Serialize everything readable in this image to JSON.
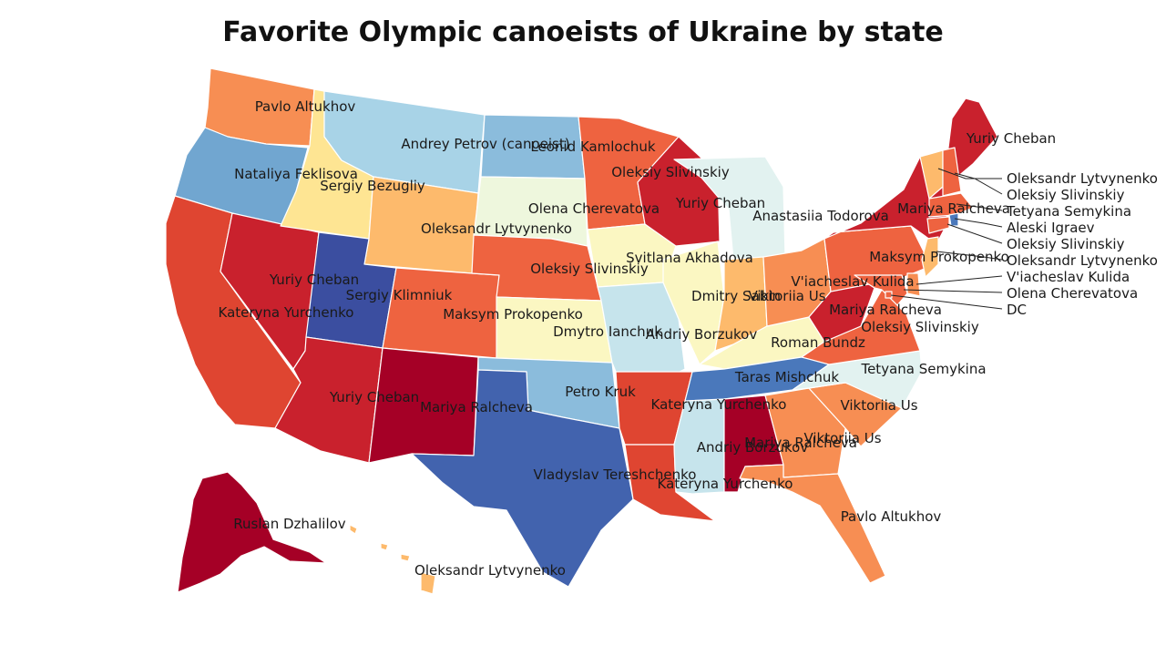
{
  "title": "Favorite Olympic canoeists of Ukraine by state",
  "colors": {
    "c1": "#a50026",
    "c2": "#c9212d",
    "c3": "#df4531",
    "c4": "#ee6340",
    "c5": "#f78e53",
    "c6": "#fdba6c",
    "c7": "#fee593",
    "c8": "#fbf7c2",
    "c9": "#eef7dd",
    "c10": "#e2f2f0",
    "c11": "#c6e4ec",
    "c12": "#a8d3e7",
    "c13": "#8bbcdc",
    "c14": "#71a6d0",
    "c15": "#4a78bb",
    "c16": "#4263ae",
    "c17": "#3b4ea0"
  },
  "states": {
    "WA": {
      "name": "Pavlo Altukhov",
      "fill": "c5"
    },
    "OR": {
      "name": "Nataliya Feklisova",
      "fill": "c14"
    },
    "CA": {
      "name": "Kateryna Yurchenko",
      "fill": "c3"
    },
    "NV": {
      "name": "Yuriy Cheban",
      "fill": "c2"
    },
    "ID": {
      "name": "Sergiy Bezugliy",
      "fill": "c7"
    },
    "MT": {
      "name": "Andrey Petrov (canoeist)",
      "fill": "c12"
    },
    "WY": {
      "name": "Oleksandr Lytvynenko",
      "fill": "c6"
    },
    "UT": {
      "name": "Sergiy Klimniuk",
      "fill": "c17"
    },
    "AZ": {
      "name": "Yuriy Cheban",
      "fill": "c2"
    },
    "CO": {
      "name": "Maksym Prokopenko",
      "fill": "c4"
    },
    "NM": {
      "name": "Mariya Ralcheva",
      "fill": "c1"
    },
    "ND": {
      "name": "Leonid Kamlochuk",
      "fill": "c13"
    },
    "SD": {
      "name": "Olena Cherevatova",
      "fill": "c9"
    },
    "NE": {
      "name": "Oleksiy Slivinskiy",
      "fill": "c4"
    },
    "KS": {
      "name": "Dmytro Ianchuk",
      "fill": "c8"
    },
    "OK": {
      "name": "Petro Kruk",
      "fill": "c13"
    },
    "TX": {
      "name": "Vladyslav Tereshchenko",
      "fill": "c16"
    },
    "MN": {
      "name": "Oleksiy Slivinskiy",
      "fill": "c4"
    },
    "IA": {
      "name": "Svitlana Akhadova",
      "fill": "c8"
    },
    "MO": {
      "name": "Andriy Borzukov",
      "fill": "c11"
    },
    "AR": {
      "name": "Kateryna Yurchenko",
      "fill": "c3"
    },
    "LA": {
      "name": "Kateryna Yurchenko",
      "fill": "c3"
    },
    "WI": {
      "name": "Yuriy Cheban",
      "fill": "c2"
    },
    "IL": {
      "name": "Dmitry Sabin",
      "fill": "c8"
    },
    "MS": {
      "name": "Andriy Borzukov",
      "fill": "c11"
    },
    "MI": {
      "name": "Anastasiia Todorova",
      "fill": "c10"
    },
    "IN": {
      "name": "Viktoriia Us",
      "fill": "c6"
    },
    "KY": {
      "name": "Roman Bundz",
      "fill": "c8"
    },
    "TN": {
      "name": "Taras Mishchuk",
      "fill": "c15"
    },
    "AL": {
      "name": "Mariya Ralcheva",
      "fill": "c1"
    },
    "OH": {
      "name": "V'iacheslav Kulida",
      "fill": "c5"
    },
    "GA": {
      "name": "Viktoriia Us",
      "fill": "c5"
    },
    "FL": {
      "name": "Pavlo Altukhov",
      "fill": "c5"
    },
    "SC": {
      "name": "Viktoriia Us",
      "fill": "c5"
    },
    "NC": {
      "name": "Tetyana Semykina",
      "fill": "c10"
    },
    "VA": {
      "name": "Oleksiy Slivinskiy",
      "fill": "c4"
    },
    "WV": {
      "name": "Mariya Ralcheva",
      "fill": "c2"
    },
    "PA": {
      "name": "Maksym Prokopenko",
      "fill": "c4"
    },
    "NY": {
      "name": "Mariya Ralcheva",
      "fill": "c2"
    },
    "ME": {
      "name": "Yuriy Cheban",
      "fill": "c2"
    },
    "VT": {
      "name": "Oleksandr Lytvynenko",
      "fill": "c6"
    },
    "NH": {
      "name": "Oleksiy Slivinskiy",
      "fill": "c4"
    },
    "MA": {
      "name": "Tetyana Semykina",
      "fill": "c4"
    },
    "RI": {
      "name": "Aleski Igraev",
      "fill": "c15"
    },
    "CT": {
      "name": "Oleksiy Slivinskiy",
      "fill": "c4"
    },
    "NJ": {
      "name": "Oleksandr Lytvynenko",
      "fill": "c6"
    },
    "DE": {
      "name": "V'iacheslav Kulida",
      "fill": "c5"
    },
    "MD": {
      "name": "Olena Cherevatova",
      "fill": "c4"
    },
    "DC": {
      "name": "DC",
      "fill": "c4"
    },
    "AK": {
      "name": "Ruslan Dzhalilov",
      "fill": "c1"
    },
    "HI": {
      "name": "Oleksandr Lytvynenko",
      "fill": "c6"
    }
  }
}
